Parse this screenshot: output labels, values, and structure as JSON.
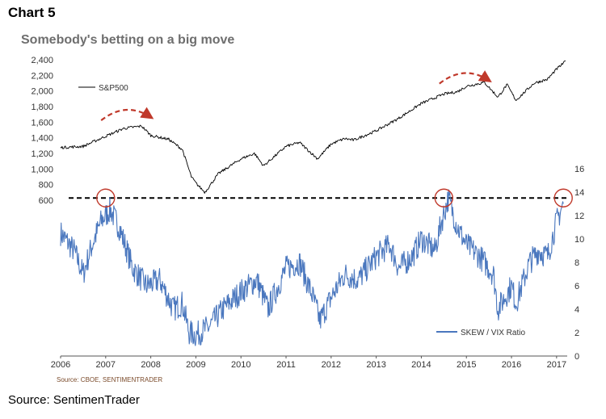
{
  "header": {
    "label": "Chart 5",
    "title": "Somebody's betting on a big move"
  },
  "footer": {
    "source": "Source: SentimenTrader"
  },
  "chart_data": [
    {
      "type": "line",
      "series": [
        {
          "name": "S&P500",
          "color": "#000000",
          "x": [
            2006.0,
            2006.5,
            2007.0,
            2007.4,
            2007.8,
            2008.0,
            2008.4,
            2008.7,
            2008.9,
            2009.0,
            2009.2,
            2009.5,
            2010.0,
            2010.3,
            2010.5,
            2011.0,
            2011.3,
            2011.7,
            2012.0,
            2012.3,
            2012.5,
            2013.0,
            2013.5,
            2014.0,
            2014.5,
            2014.8,
            2015.0,
            2015.4,
            2015.7,
            2015.9,
            2016.1,
            2016.5,
            2016.8,
            2017.0,
            2017.2
          ],
          "values": [
            1275,
            1290,
            1420,
            1520,
            1550,
            1430,
            1380,
            1250,
            900,
            820,
            700,
            940,
            1130,
            1200,
            1040,
            1290,
            1340,
            1130,
            1320,
            1390,
            1370,
            1490,
            1650,
            1840,
            1960,
            1990,
            2060,
            2110,
            1920,
            2080,
            1880,
            2100,
            2150,
            2280,
            2380
          ]
        }
      ],
      "ylim": [
        600,
        2400
      ],
      "yticks": [
        "600",
        "800",
        "1,000",
        "1,200",
        "1,400",
        "1,600",
        "1,800",
        "2,000",
        "2,200",
        "2,400"
      ]
    },
    {
      "type": "line",
      "series": [
        {
          "name": "SKEW / VIX Ratio",
          "color": "#4a77be",
          "x": [
            2006.0,
            2006.3,
            2006.5,
            2006.7,
            2006.9,
            2007.1,
            2007.3,
            2007.6,
            2007.9,
            2008.2,
            2008.5,
            2008.7,
            2008.85,
            2009.0,
            2009.3,
            2009.6,
            2010.0,
            2010.35,
            2010.6,
            2011.0,
            2011.3,
            2011.6,
            2011.75,
            2012.0,
            2012.3,
            2012.6,
            2013.0,
            2013.3,
            2013.5,
            2013.8,
            2014.0,
            2014.3,
            2014.45,
            2014.6,
            2014.8,
            2015.0,
            2015.3,
            2015.6,
            2015.7,
            2016.0,
            2016.1,
            2016.4,
            2016.6,
            2016.8,
            2017.0,
            2017.15
          ],
          "values": [
            10.5,
            9.0,
            7.0,
            9.5,
            11.5,
            12.5,
            11.0,
            7.5,
            6.0,
            6.5,
            4.0,
            4.5,
            2.0,
            1.8,
            2.5,
            4.0,
            5.5,
            6.5,
            4.0,
            7.5,
            8.0,
            5.0,
            3.0,
            5.0,
            7.0,
            6.5,
            8.5,
            9.5,
            7.5,
            8.5,
            10.0,
            9.0,
            11.5,
            13.5,
            11.0,
            9.5,
            8.5,
            7.0,
            4.0,
            6.0,
            4.5,
            8.0,
            9.0,
            8.5,
            11.5,
            13.0
          ]
        }
      ],
      "ylim": [
        0,
        16
      ],
      "yticks": [
        "0",
        "2",
        "4",
        "6",
        "8",
        "10",
        "12",
        "14",
        "16"
      ]
    }
  ],
  "x_axis": {
    "range": [
      2006,
      2017.2
    ],
    "ticks": [
      "2006",
      "2007",
      "2008",
      "2009",
      "2010",
      "2011",
      "2012",
      "2013",
      "2014",
      "2015",
      "2016",
      "2017"
    ]
  },
  "annotations": {
    "threshold_value": 13.5,
    "circles_at_year": [
      2007.0,
      2014.5,
      2017.15
    ],
    "arrows_span_years": [
      [
        2006.9,
        2008.0
      ],
      [
        2014.4,
        2015.5
      ]
    ],
    "circle_color": "#c0392b",
    "arrow_color": "#c0392b"
  },
  "chart_source": "Source: CBOE, SENTIMENTRADER"
}
